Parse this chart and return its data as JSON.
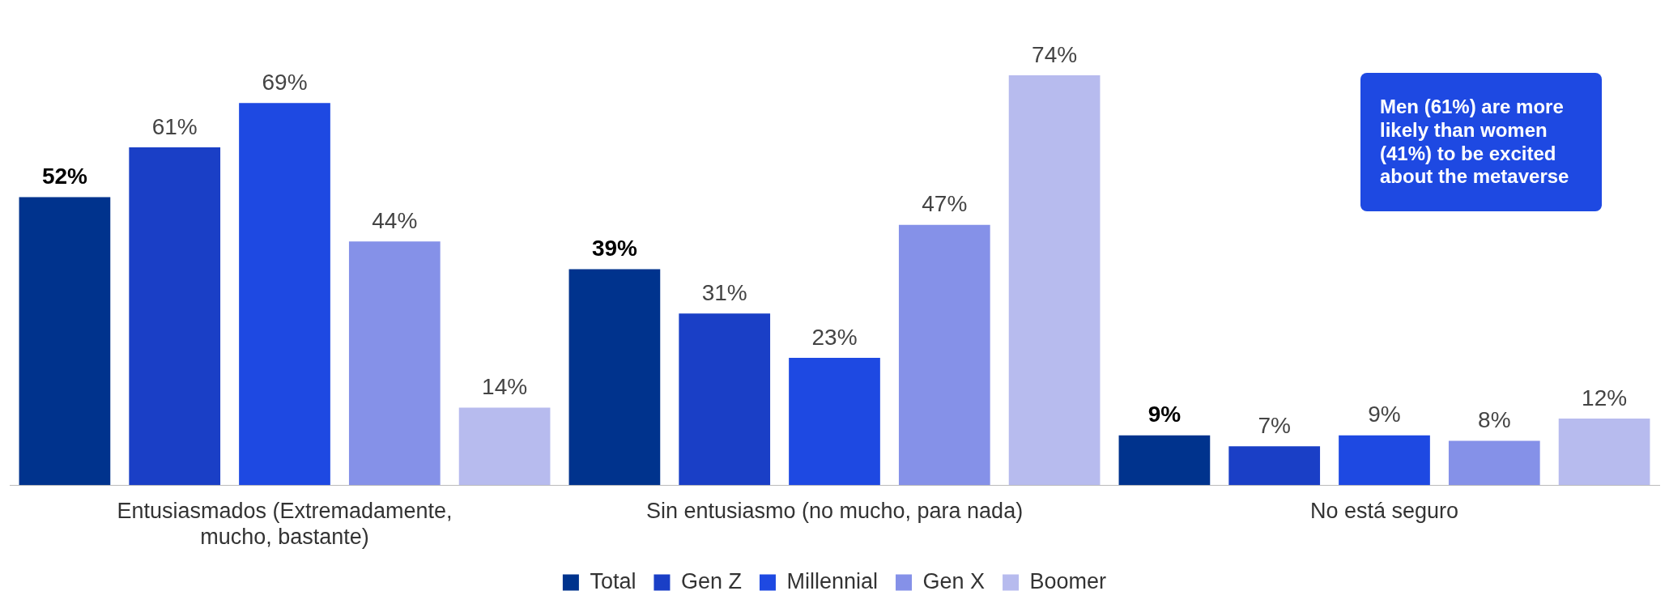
{
  "chart_data": {
    "type": "bar",
    "categories": [
      "Entusiasmados (Extremadamente, mucho, bastante)",
      "Sin entusiasmo (no mucho, para nada)",
      "No está seguro"
    ],
    "series": [
      {
        "name": "Total",
        "color": "#00338d",
        "values": [
          52,
          39,
          9
        ],
        "value_labels": [
          "52%",
          "39%",
          "9%"
        ]
      },
      {
        "name": "Gen Z",
        "color": "#1a3fc6",
        "values": [
          61,
          31,
          7
        ],
        "value_labels": [
          "61%",
          "31%",
          "7%"
        ]
      },
      {
        "name": "Millennial",
        "color": "#1e49e2",
        "values": [
          69,
          23,
          9
        ],
        "value_labels": [
          "69%",
          "23%",
          "9%"
        ]
      },
      {
        "name": "Gen X",
        "color": "#8591e8",
        "values": [
          44,
          47,
          8
        ],
        "value_labels": [
          "44%",
          "47%",
          "8%"
        ]
      },
      {
        "name": "Boomer",
        "color": "#b7bbee",
        "values": [
          14,
          74,
          12
        ],
        "value_labels": [
          "14%",
          "74%",
          "12%"
        ]
      }
    ],
    "tick_labels": "x",
    "grid": false,
    "legend": "bottom",
    "annotations": [
      "Men (61%) are more likely than women (41%) to be excited about the metaverse"
    ]
  }
}
